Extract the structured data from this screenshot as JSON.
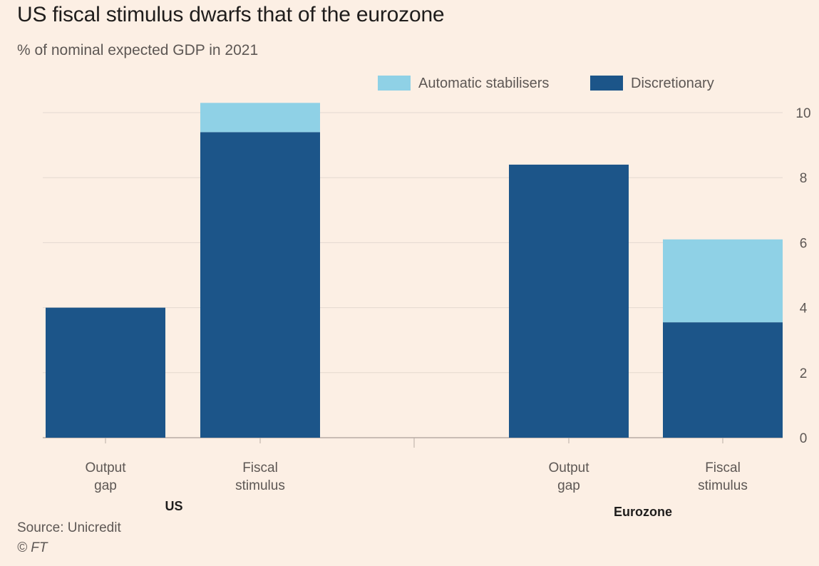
{
  "title": "US fiscal stimulus dwarfs that of the eurozone",
  "subtitle": "% of nominal expected GDP in 2021",
  "source": "Source: Unicredit",
  "copyright": "© FT",
  "colors": {
    "background": "#fcefe4",
    "automatic_stabilisers": "#8fd1e6",
    "discretionary": "#1c5589",
    "grid": "#e4d8cf",
    "axis_text": "#5d5754"
  },
  "chart_data": {
    "type": "bar",
    "stacked": true,
    "groups": [
      {
        "label": "US",
        "categories": [
          "Output\ngap",
          "Fiscal\nstimulus"
        ]
      },
      {
        "label": "Eurozone",
        "categories": [
          "Output\ngap",
          "Fiscal\nstimulus"
        ]
      }
    ],
    "categories": [
      "Output\ngap",
      "Fiscal\nstimulus",
      "Output\ngap",
      "Fiscal\nstimulus"
    ],
    "series": [
      {
        "name": "Discretionary",
        "values": [
          4.0,
          9.4,
          8.4,
          3.55
        ]
      },
      {
        "name": "Automatic stabilisers",
        "values": [
          0,
          0.9,
          0,
          2.55
        ]
      }
    ],
    "legend_position": "top-right",
    "yaxis_side": "right",
    "ylim": [
      0,
      10
    ],
    "yticks": [
      0,
      2,
      4,
      6,
      8,
      10
    ],
    "grid": true
  }
}
